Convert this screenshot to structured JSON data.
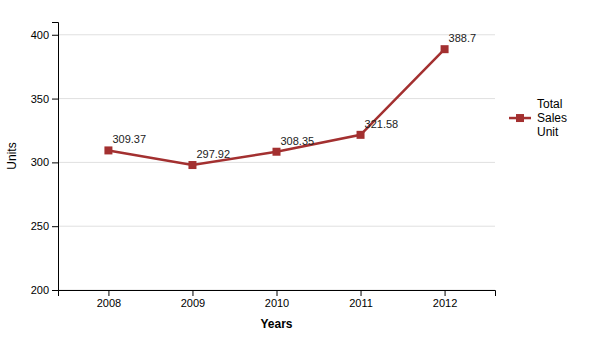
{
  "chart_data": {
    "type": "line",
    "x": [
      2008,
      2009,
      2010,
      2011,
      2012
    ],
    "series": [
      {
        "name": "Total\nSales\nUnit",
        "color": "#a33030",
        "marker": "square",
        "values": [
          309.37,
          297.92,
          308.35,
          321.58,
          388.7
        ]
      }
    ],
    "x_label": "Years",
    "y_label": "Units",
    "xlim": [
      2007.4,
      2012.6
    ],
    "xticks": [
      2008,
      2009,
      2010,
      2011,
      2012
    ],
    "ylim": [
      200,
      410
    ],
    "yticks": [
      200,
      250,
      300,
      350,
      400
    ],
    "grid": true,
    "legend": "right",
    "data_labels": true
  }
}
